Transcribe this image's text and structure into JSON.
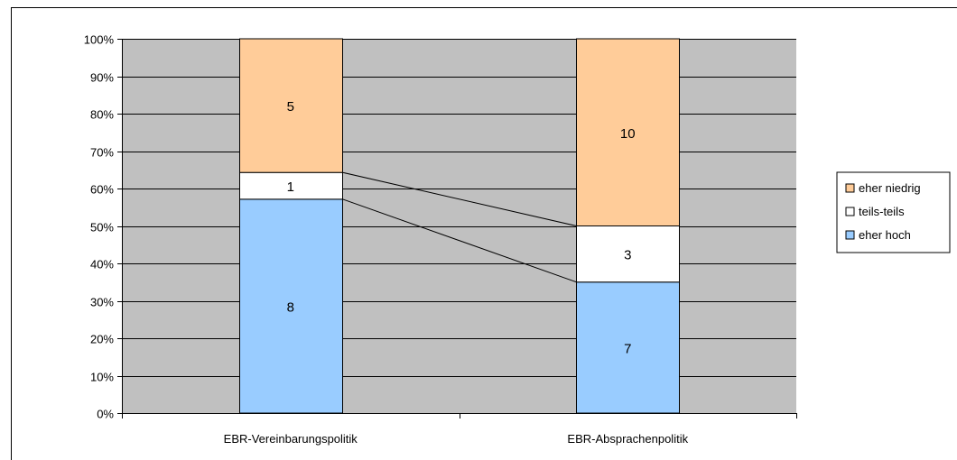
{
  "chart_data": {
    "type": "bar",
    "stacked": "percent",
    "categories": [
      "EBR-Vereinbarungspolitik",
      "EBR-Absprachenpolitik"
    ],
    "series": [
      {
        "name": "eher hoch",
        "values": [
          8,
          7
        ],
        "color": "#99ccff"
      },
      {
        "name": "teils-teils",
        "values": [
          1,
          3
        ],
        "color": "#ffffff"
      },
      {
        "name": "eher niedrig",
        "values": [
          5,
          10
        ],
        "color": "#ffcc99"
      }
    ],
    "legend_order": [
      "eher niedrig",
      "teils-teils",
      "eher hoch"
    ],
    "y_ticks": [
      "0%",
      "10%",
      "20%",
      "30%",
      "40%",
      "50%",
      "60%",
      "70%",
      "80%",
      "90%",
      "100%"
    ],
    "ylim": [
      0,
      100
    ],
    "grid": true,
    "plot_background": "#c0c0c0",
    "series_lines": true,
    "legend_position": "right",
    "title": "",
    "xlabel": "",
    "ylabel": ""
  }
}
